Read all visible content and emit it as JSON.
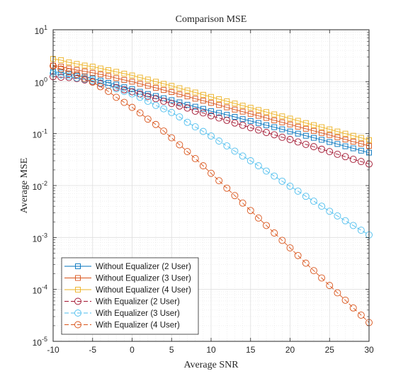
{
  "chart_data": {
    "type": "line",
    "title": "Comparison MSE",
    "xlabel": "Average SNR",
    "ylabel": "Average MSE",
    "xlim": [
      -10,
      30
    ],
    "ylim": [
      1e-05,
      10
    ],
    "yscale": "log",
    "grid": true,
    "minor_grid": true,
    "legend_position": "bottom-left",
    "x_ticks": [
      -10,
      -5,
      0,
      5,
      10,
      15,
      20,
      25,
      30
    ],
    "y_ticks": [
      {
        "value": 1e-05,
        "base": "10",
        "exp": "-5"
      },
      {
        "value": 0.0001,
        "base": "10",
        "exp": "-4"
      },
      {
        "value": 0.001,
        "base": "10",
        "exp": "-3"
      },
      {
        "value": 0.01,
        "base": "10",
        "exp": "-2"
      },
      {
        "value": 0.1,
        "base": "10",
        "exp": "-1"
      },
      {
        "value": 1,
        "base": "10",
        "exp": "0"
      },
      {
        "value": 10,
        "base": "10",
        "exp": "1"
      }
    ],
    "x": [
      -10,
      -9,
      -8,
      -7,
      -6,
      -5,
      -4,
      -3,
      -2,
      -1,
      0,
      1,
      2,
      3,
      4,
      5,
      6,
      7,
      8,
      9,
      10,
      11,
      12,
      13,
      14,
      15,
      16,
      17,
      18,
      19,
      20,
      21,
      22,
      23,
      24,
      25,
      26,
      27,
      28,
      29,
      30
    ],
    "series": [
      {
        "name": "Without Equalizer (2 User)",
        "color": "#0072BD",
        "marker": "square",
        "dash": "solid",
        "values": [
          1.55,
          1.5,
          1.4,
          1.3,
          1.25,
          1.15,
          1.05,
          0.95,
          0.88,
          0.78,
          0.72,
          0.64,
          0.58,
          0.53,
          0.48,
          0.44,
          0.4,
          0.36,
          0.33,
          0.3,
          0.27,
          0.25,
          0.23,
          0.21,
          0.19,
          0.175,
          0.16,
          0.145,
          0.133,
          0.121,
          0.11,
          0.1,
          0.091,
          0.083,
          0.076,
          0.069,
          0.063,
          0.057,
          0.052,
          0.047,
          0.043
        ]
      },
      {
        "name": "Without Equalizer (3 User)",
        "color": "#D95319",
        "marker": "square",
        "dash": "solid",
        "values": [
          2.05,
          1.95,
          1.8,
          1.68,
          1.58,
          1.48,
          1.38,
          1.28,
          1.17,
          1.08,
          1.0,
          0.91,
          0.83,
          0.76,
          0.69,
          0.63,
          0.57,
          0.52,
          0.47,
          0.43,
          0.39,
          0.355,
          0.32,
          0.29,
          0.265,
          0.24,
          0.22,
          0.2,
          0.18,
          0.165,
          0.15,
          0.136,
          0.124,
          0.113,
          0.103,
          0.094,
          0.085,
          0.077,
          0.07,
          0.064,
          0.058
        ]
      },
      {
        "name": "Without Equalizer (4 User)",
        "color": "#EDB120",
        "marker": "square",
        "dash": "solid",
        "values": [
          2.75,
          2.6,
          2.35,
          2.2,
          2.05,
          1.95,
          1.8,
          1.67,
          1.55,
          1.43,
          1.32,
          1.2,
          1.1,
          1.0,
          0.91,
          0.83,
          0.75,
          0.68,
          0.62,
          0.56,
          0.51,
          0.46,
          0.42,
          0.38,
          0.345,
          0.315,
          0.285,
          0.26,
          0.235,
          0.215,
          0.195,
          0.177,
          0.16,
          0.146,
          0.133,
          0.121,
          0.11,
          0.1,
          0.091,
          0.083,
          0.075
        ]
      },
      {
        "name": "With Equalizer (2 User)",
        "color": "#A2142F",
        "marker": "circle",
        "dash": "dashed",
        "values": [
          1.25,
          1.22,
          1.2,
          1.15,
          1.08,
          1.0,
          0.92,
          0.85,
          0.77,
          0.7,
          0.64,
          0.58,
          0.52,
          0.47,
          0.42,
          0.38,
          0.34,
          0.31,
          0.27,
          0.25,
          0.22,
          0.2,
          0.18,
          0.16,
          0.145,
          0.13,
          0.117,
          0.105,
          0.095,
          0.085,
          0.077,
          0.069,
          0.062,
          0.056,
          0.05,
          0.045,
          0.04,
          0.036,
          0.032,
          0.029,
          0.026
        ]
      },
      {
        "name": "With Equalizer (3 User)",
        "color": "#4DBEEE",
        "marker": "circle",
        "dash": "dashed",
        "values": [
          1.45,
          1.35,
          1.28,
          1.18,
          1.12,
          1.05,
          0.95,
          0.85,
          0.73,
          0.65,
          0.58,
          0.5,
          0.42,
          0.35,
          0.3,
          0.255,
          0.21,
          0.165,
          0.135,
          0.11,
          0.09,
          0.072,
          0.058,
          0.046,
          0.037,
          0.03,
          0.024,
          0.019,
          0.0152,
          0.0121,
          0.0097,
          0.0078,
          0.0062,
          0.005,
          0.004,
          0.0032,
          0.0026,
          0.0021,
          0.0017,
          0.00138,
          0.00112
        ]
      },
      {
        "name": "With Equalizer (4 User)",
        "color": "#D95319",
        "marker": "circle",
        "dash": "dashed",
        "values": [
          2.0,
          1.75,
          1.55,
          1.38,
          1.15,
          0.98,
          0.8,
          0.65,
          0.5,
          0.4,
          0.32,
          0.25,
          0.19,
          0.15,
          0.112,
          0.083,
          0.061,
          0.045,
          0.033,
          0.024,
          0.0172,
          0.0124,
          0.0089,
          0.0064,
          0.0046,
          0.0033,
          0.00237,
          0.0017,
          0.00122,
          0.00088,
          0.00063,
          0.00045,
          0.00032,
          0.00023,
          0.000166,
          0.000119,
          8.6e-05,
          6.2e-05,
          4.4e-05,
          3.2e-05,
          2.3e-05
        ]
      }
    ]
  }
}
